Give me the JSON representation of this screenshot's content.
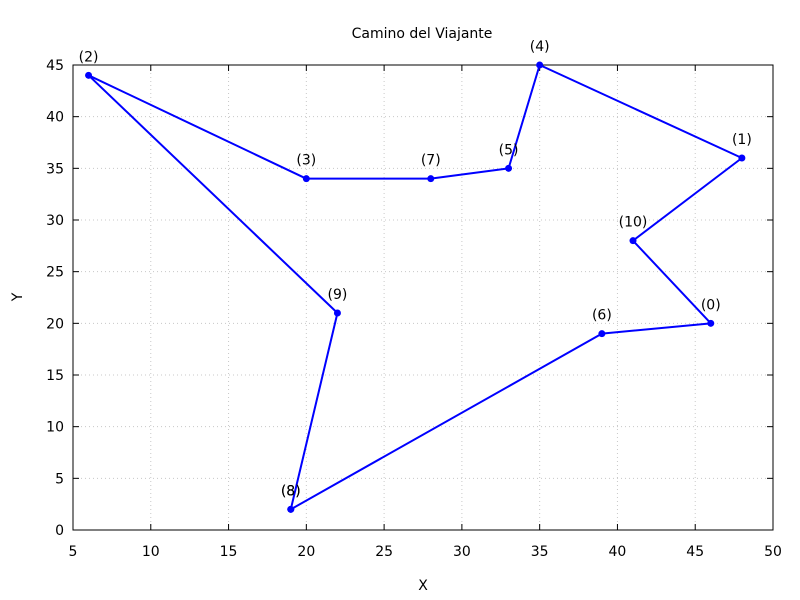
{
  "chart_data": {
    "type": "line",
    "title": "Camino del Viajante",
    "xlabel": "X",
    "ylabel": "Y",
    "xlim": [
      5,
      50
    ],
    "ylim": [
      0,
      45
    ],
    "xticks": [
      5,
      10,
      15,
      20,
      25,
      30,
      35,
      40,
      45,
      50
    ],
    "yticks": [
      0,
      5,
      10,
      15,
      20,
      25,
      30,
      35,
      40,
      45
    ],
    "grid": true,
    "series": [
      {
        "color": "#0000ff",
        "points": [
          {
            "label": "(8)",
            "x": 19,
            "y": 2
          },
          {
            "label": "(6)",
            "x": 39,
            "y": 19
          },
          {
            "label": "(0)",
            "x": 46,
            "y": 20
          },
          {
            "label": "(10)",
            "x": 41,
            "y": 28
          },
          {
            "label": "(1)",
            "x": 48,
            "y": 36
          },
          {
            "label": "(4)",
            "x": 35,
            "y": 45
          },
          {
            "label": "(5)",
            "x": 33,
            "y": 35
          },
          {
            "label": "(7)",
            "x": 28,
            "y": 34
          },
          {
            "label": "(3)",
            "x": 20,
            "y": 34
          },
          {
            "label": "(2)",
            "x": 6,
            "y": 44
          },
          {
            "label": "(9)",
            "x": 22,
            "y": 21
          },
          {
            "label": "(8)",
            "x": 19,
            "y": 2
          }
        ]
      }
    ]
  }
}
